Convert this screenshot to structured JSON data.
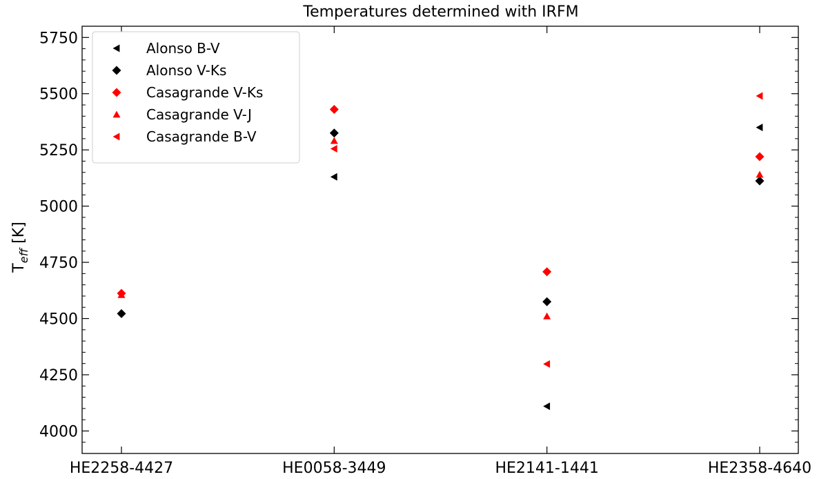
{
  "chart_data": {
    "type": "scatter",
    "title": "Temperatures determined with IRFM",
    "xlabel": "",
    "ylabel": {
      "main": "T",
      "subscript": "eff",
      "unit": " [K]"
    },
    "categories": [
      "HE2258-4427",
      "HE0058-3449",
      "HE2141-1441",
      "HE2358-4640"
    ],
    "ylim": [
      3900,
      5800
    ],
    "yticks": [
      4000,
      4250,
      4500,
      4750,
      5000,
      5250,
      5500,
      5750
    ],
    "grid": false,
    "legend_position": "top-left",
    "series": [
      {
        "name": "Alonso B-V",
        "marker": "triangle-left",
        "color": "#000000",
        "values": [
          null,
          5130,
          4110,
          5350
        ]
      },
      {
        "name": "Alonso V-Ks",
        "marker": "diamond",
        "color": "#000000",
        "values": [
          4522,
          5325,
          4575,
          5112
        ]
      },
      {
        "name": "Casagrande V-Ks",
        "marker": "diamond",
        "color": "#ff0000",
        "values": [
          4612,
          5430,
          4708,
          5220
        ]
      },
      {
        "name": "Casagrande V-J",
        "marker": "triangle-up",
        "color": "#ff0000",
        "values": [
          4605,
          5290,
          4510,
          5140
        ]
      },
      {
        "name": "Casagrande B-V",
        "marker": "triangle-left",
        "color": "#ff0000",
        "values": [
          null,
          5255,
          4298,
          5490
        ]
      }
    ]
  }
}
